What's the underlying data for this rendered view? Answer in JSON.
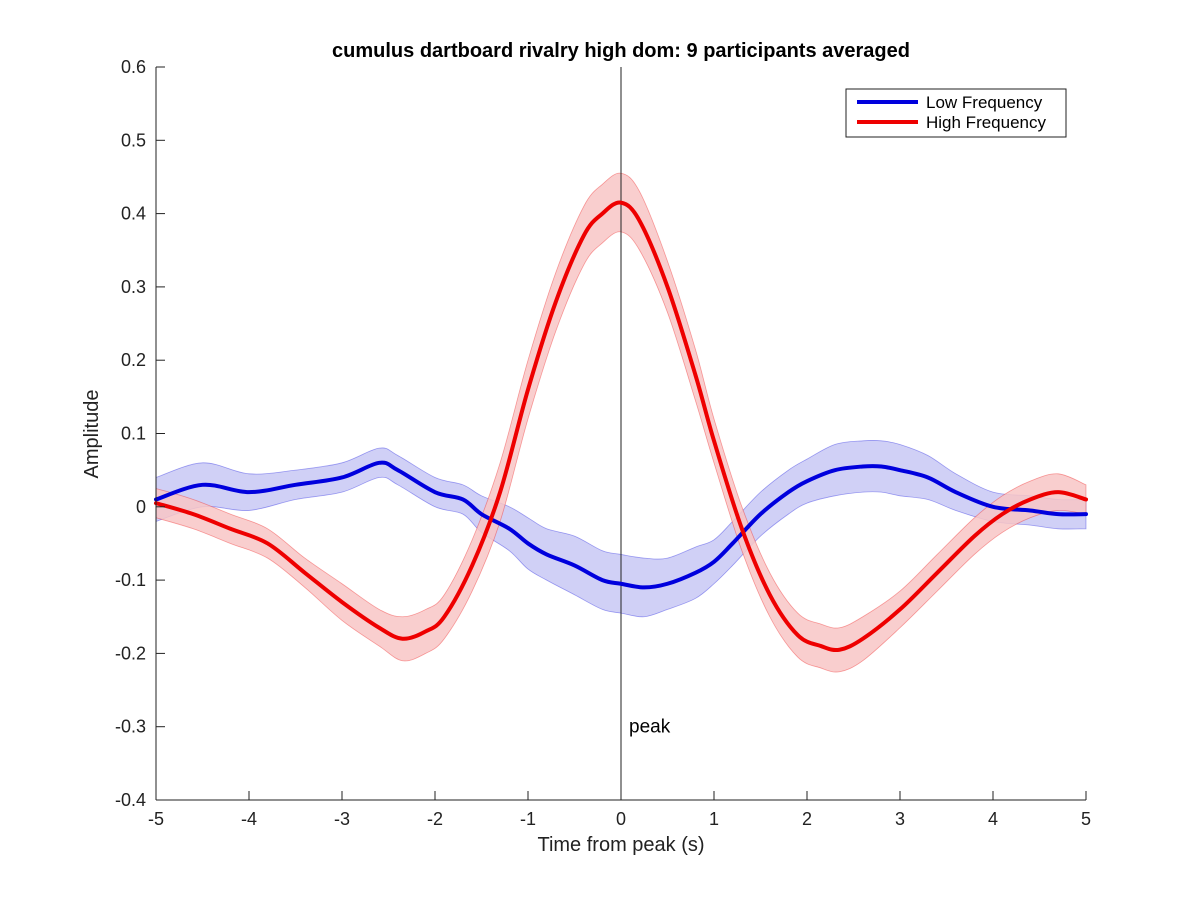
{
  "chart_data": {
    "type": "line",
    "title": "cumulus dartboard rivalry high dom: 9 participants averaged",
    "xlabel": "Time from peak (s)",
    "ylabel": "Amplitude",
    "xlim": [
      -5,
      5
    ],
    "ylim": [
      -0.4,
      0.6
    ],
    "xticks": [
      "-5",
      "-4",
      "-3",
      "-2",
      "-1",
      "0",
      "1",
      "2",
      "3",
      "4",
      "5"
    ],
    "yticks": [
      "-0.4",
      "-0.3",
      "-0.2",
      "-0.1",
      "0",
      "0.1",
      "0.2",
      "0.3",
      "0.4",
      "0.5",
      "0.6"
    ],
    "grid": false,
    "legend_position": "top-right",
    "annotation": {
      "text": "peak",
      "x": 0,
      "y": -0.3
    },
    "vertical_line_x": 0,
    "series": [
      {
        "name": "Low Frequency",
        "color": "#0000dd",
        "band_color": "#c8c8f4",
        "x": [
          -5,
          -4.5,
          -4,
          -3.5,
          -3,
          -2.6,
          -2.4,
          -2,
          -1.7,
          -1.5,
          -1.2,
          -1,
          -0.8,
          -0.5,
          -0.2,
          0,
          0.25,
          0.5,
          0.8,
          1,
          1.2,
          1.5,
          1.8,
          2,
          2.3,
          2.6,
          2.8,
          3,
          3.3,
          3.6,
          4,
          4.4,
          4.7,
          5
        ],
        "y": [
          0.01,
          0.03,
          0.02,
          0.03,
          0.04,
          0.06,
          0.05,
          0.02,
          0.01,
          -0.01,
          -0.03,
          -0.05,
          -0.065,
          -0.08,
          -0.1,
          -0.105,
          -0.11,
          -0.105,
          -0.09,
          -0.075,
          -0.05,
          -0.01,
          0.02,
          0.035,
          0.05,
          0.055,
          0.055,
          0.05,
          0.04,
          0.02,
          0,
          -0.005,
          -0.01,
          -0.01
        ],
        "band": [
          0.03,
          0.03,
          0.025,
          0.02,
          0.02,
          0.02,
          0.02,
          0.02,
          0.02,
          0.025,
          0.03,
          0.035,
          0.035,
          0.04,
          0.04,
          0.04,
          0.04,
          0.035,
          0.035,
          0.03,
          0.03,
          0.03,
          0.03,
          0.03,
          0.035,
          0.035,
          0.035,
          0.035,
          0.03,
          0.025,
          0.02,
          0.02,
          0.02,
          0.02
        ]
      },
      {
        "name": "High Frequency",
        "color": "#ee0000",
        "band_color": "#f8c6c6",
        "x": [
          -5,
          -4.6,
          -4.2,
          -3.8,
          -3.4,
          -3,
          -2.6,
          -2.35,
          -2.1,
          -1.9,
          -1.6,
          -1.3,
          -1,
          -0.7,
          -0.4,
          -0.2,
          0,
          0.2,
          0.5,
          0.8,
          1,
          1.3,
          1.6,
          1.9,
          2.15,
          2.35,
          2.6,
          3,
          3.4,
          3.8,
          4.1,
          4.4,
          4.7,
          5
        ],
        "y": [
          0.005,
          -0.01,
          -0.03,
          -0.05,
          -0.09,
          -0.13,
          -0.165,
          -0.18,
          -0.17,
          -0.15,
          -0.08,
          0.02,
          0.16,
          0.28,
          0.37,
          0.4,
          0.415,
          0.39,
          0.3,
          0.18,
          0.09,
          -0.03,
          -0.12,
          -0.175,
          -0.19,
          -0.195,
          -0.18,
          -0.14,
          -0.09,
          -0.04,
          -0.01,
          0.01,
          0.02,
          0.01
        ],
        "band": [
          0.02,
          0.02,
          0.02,
          0.02,
          0.02,
          0.025,
          0.025,
          0.03,
          0.03,
          0.03,
          0.035,
          0.04,
          0.04,
          0.04,
          0.04,
          0.04,
          0.04,
          0.04,
          0.035,
          0.035,
          0.03,
          0.03,
          0.03,
          0.03,
          0.03,
          0.03,
          0.03,
          0.025,
          0.025,
          0.025,
          0.025,
          0.025,
          0.025,
          0.02
        ]
      }
    ]
  }
}
